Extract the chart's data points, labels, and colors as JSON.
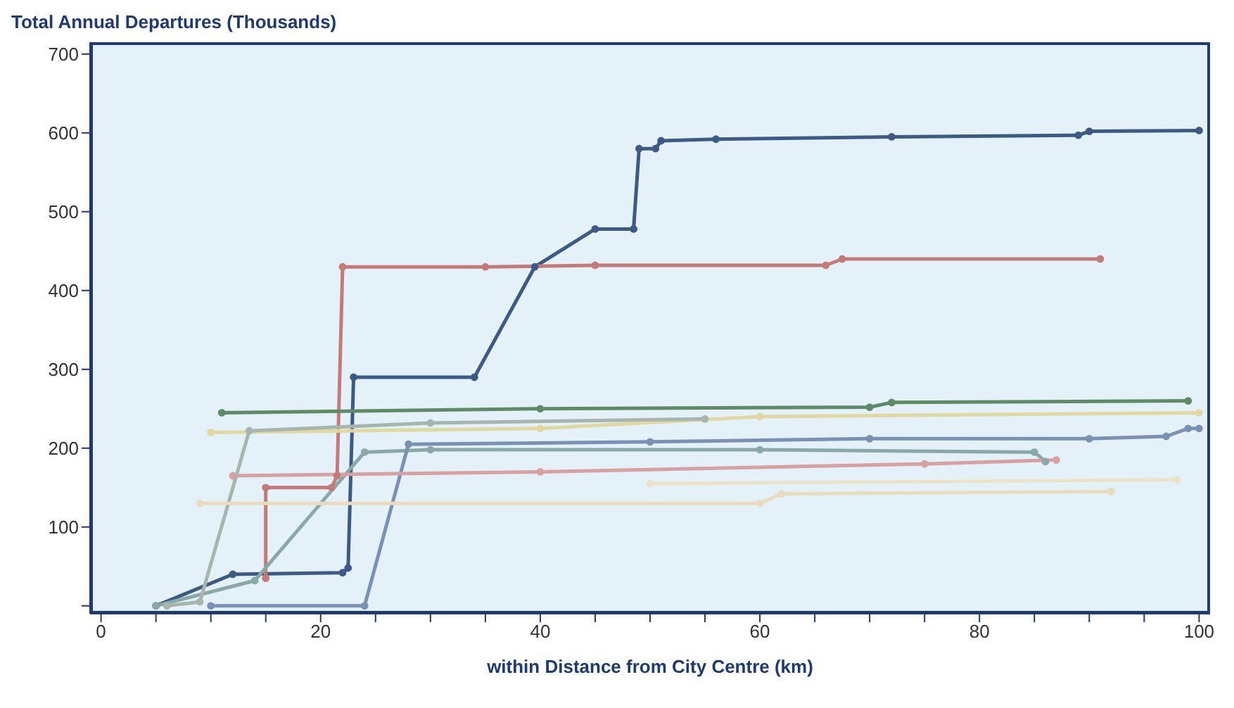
{
  "chart_data": {
    "type": "line",
    "ylabel": "Total Annual Departures (Thousands)",
    "xlabel": "within Distance from City Centre (km)",
    "xlim": [
      -1,
      101
    ],
    "ylim": [
      -10,
      715
    ],
    "xticks": [
      0,
      {
        "value": 5,
        "label": null
      },
      {
        "value": 10,
        "label": null
      },
      {
        "value": 15,
        "label": null
      },
      20,
      {
        "value": 25,
        "label": null
      },
      {
        "value": 30,
        "label": null
      },
      {
        "value": 35,
        "label": null
      },
      40,
      {
        "value": 45,
        "label": null
      },
      {
        "value": 50,
        "label": null
      },
      {
        "value": 55,
        "label": null
      },
      60,
      {
        "value": 65,
        "label": null
      },
      {
        "value": 70,
        "label": null
      },
      {
        "value": 75,
        "label": null
      },
      80,
      {
        "value": 85,
        "label": null
      },
      {
        "value": 90,
        "label": null
      },
      {
        "value": 95,
        "label": null
      },
      100
    ],
    "yticks": [
      {
        "value": 0,
        "label": null
      },
      100,
      200,
      300,
      400,
      500,
      600,
      700
    ],
    "grid": false,
    "marker": "circle",
    "line_style": "solid",
    "series": [
      {
        "color": "#3d5a85",
        "x": [
          5,
          12,
          22,
          22.5,
          23,
          34,
          39.5,
          45,
          48.5,
          49,
          50.5,
          51,
          56,
          72,
          89,
          90,
          100
        ],
        "values": [
          0,
          40,
          42,
          48,
          290,
          290,
          430,
          478,
          478,
          580,
          580,
          590,
          592,
          595,
          597,
          602,
          603
        ]
      },
      {
        "color": "#c47a78",
        "x": [
          15,
          15,
          21,
          21.5,
          22,
          35,
          45,
          66,
          67.5,
          91
        ],
        "values": [
          35,
          150,
          150,
          165,
          430,
          430,
          432,
          432,
          440,
          440
        ]
      },
      {
        "color": "#5e8a68",
        "x": [
          11,
          40,
          70,
          72,
          99
        ],
        "values": [
          245,
          250,
          252,
          258,
          260
        ]
      },
      {
        "color": "#8aa8a8",
        "x": [
          5,
          14,
          24,
          30,
          60,
          85,
          86
        ],
        "values": [
          0,
          32,
          195,
          198,
          198,
          195,
          183
        ]
      },
      {
        "color": "#7a90b4",
        "x": [
          10,
          24,
          28,
          50,
          70,
          90,
          97,
          99,
          100
        ],
        "values": [
          0,
          0,
          205,
          208,
          212,
          212,
          215,
          225,
          225
        ]
      },
      {
        "color": "#d8a0a0",
        "x": [
          12,
          40,
          75,
          87
        ],
        "values": [
          165,
          170,
          180,
          185
        ]
      },
      {
        "color": "#e0d8a0",
        "x": [
          10,
          40,
          60,
          100
        ],
        "values": [
          220,
          225,
          240,
          245
        ]
      },
      {
        "color": "#a8b4ae",
        "x": [
          6,
          9,
          13.5,
          30,
          55
        ],
        "values": [
          0,
          5,
          222,
          232,
          237
        ]
      },
      {
        "color": "#e8dcbc",
        "x": [
          9,
          60,
          62,
          92
        ],
        "values": [
          130,
          130,
          142,
          145
        ]
      },
      {
        "color": "#ece2c8",
        "x": [
          50,
          98
        ],
        "values": [
          155,
          160
        ]
      }
    ]
  }
}
